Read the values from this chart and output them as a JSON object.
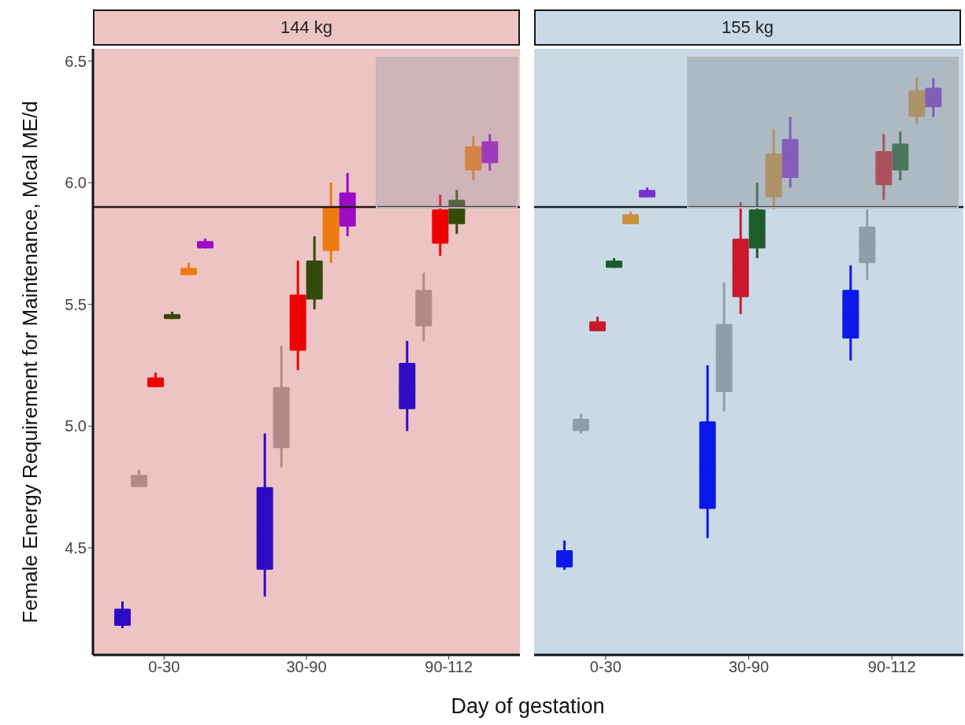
{
  "chart_data": [
    {
      "type": "box",
      "title": "144 kg",
      "xlabel": "Day of gestation",
      "ylabel": "Female Energy Requirement for Maintenance, Mcal ME/d",
      "categories": [
        "0-30",
        "30-90",
        "90-112"
      ],
      "ylim": [
        4.06,
        6.55
      ],
      "yticks": [
        {
          "value": 4.5,
          "label": "4.5"
        },
        {
          "value": 5,
          "label": "5.0"
        },
        {
          "value": 5.5,
          "label": "5.5"
        },
        {
          "value": 6,
          "label": "6.0"
        },
        {
          "value": 6.5,
          "label": "6.5"
        }
      ],
      "ref_lines": [
        {
          "axis": "y",
          "value": 5.9,
          "color": "#2a1515"
        }
      ],
      "series": [
        {
          "color": "#2f0ac6",
          "boxes": [
            {
              "low": 4.17,
              "q1": 4.18,
              "median": 4.22,
              "q3": 4.25,
              "high": 4.28
            },
            {
              "low": 4.3,
              "q1": 4.41,
              "median": 4.58,
              "q3": 4.75,
              "high": 4.97
            },
            {
              "low": 4.98,
              "q1": 5.07,
              "median": 5.16,
              "q3": 5.26,
              "high": 5.35
            }
          ]
        },
        {
          "color": "#b38a86",
          "boxes": [
            {
              "low": 4.75,
              "q1": 4.75,
              "median": 4.78,
              "q3": 4.8,
              "high": 4.82
            },
            {
              "low": 4.83,
              "q1": 4.91,
              "median": 5.04,
              "q3": 5.16,
              "high": 5.33
            },
            {
              "low": 5.35,
              "q1": 5.41,
              "median": 5.49,
              "q3": 5.56,
              "high": 5.63
            }
          ]
        },
        {
          "color": "#ee0000",
          "boxes": [
            {
              "low": 5.16,
              "q1": 5.16,
              "median": 5.18,
              "q3": 5.2,
              "high": 5.22
            },
            {
              "low": 5.23,
              "q1": 5.31,
              "median": 5.43,
              "q3": 5.54,
              "high": 5.68
            },
            {
              "low": 5.7,
              "q1": 5.75,
              "median": 5.82,
              "q3": 5.89,
              "high": 5.95
            }
          ]
        },
        {
          "color": "#344a0a",
          "boxes": [
            {
              "low": 5.44,
              "q1": 5.44,
              "median": 5.45,
              "q3": 5.46,
              "high": 5.47
            },
            {
              "low": 5.48,
              "q1": 5.52,
              "median": 5.6,
              "q3": 5.68,
              "high": 5.78
            },
            {
              "low": 5.79,
              "q1": 5.83,
              "median": 5.88,
              "q3": 5.93,
              "high": 5.97
            }
          ]
        },
        {
          "color": "#ef7b10",
          "boxes": [
            {
              "low": 5.62,
              "q1": 5.62,
              "median": 5.64,
              "q3": 5.65,
              "high": 5.67
            },
            {
              "low": 5.67,
              "q1": 5.72,
              "median": 5.81,
              "q3": 5.9,
              "high": 6.0
            },
            {
              "low": 6.01,
              "q1": 6.05,
              "median": 6.1,
              "q3": 6.15,
              "high": 6.19
            }
          ]
        },
        {
          "color": "#9b0cc4",
          "boxes": [
            {
              "low": 5.73,
              "q1": 5.73,
              "median": 5.74,
              "q3": 5.76,
              "high": 5.77
            },
            {
              "low": 5.78,
              "q1": 5.82,
              "median": 5.89,
              "q3": 5.96,
              "high": 6.04
            },
            {
              "low": 6.05,
              "q1": 6.08,
              "median": 6.13,
              "q3": 6.17,
              "high": 6.2
            }
          ]
        }
      ]
    },
    {
      "type": "box",
      "title": "155 kg",
      "categories": [
        "0-30",
        "30-90",
        "90-112"
      ],
      "ylim": [
        4.06,
        6.55
      ],
      "tick_labels": "x",
      "ref_lines": [
        {
          "axis": "y",
          "value": 5.9,
          "color": "#15202a"
        }
      ],
      "series": [
        {
          "color": "#0a18e8",
          "boxes": [
            {
              "low": 4.41,
              "q1": 4.42,
              "median": 4.45,
              "q3": 4.49,
              "high": 4.53
            },
            {
              "low": 4.54,
              "q1": 4.66,
              "median": 4.84,
              "q3": 5.02,
              "high": 5.25
            },
            {
              "low": 5.27,
              "q1": 5.36,
              "median": 5.46,
              "q3": 5.56,
              "high": 5.66
            }
          ]
        },
        {
          "color": "#8f9faa",
          "boxes": [
            {
              "low": 4.97,
              "q1": 4.98,
              "median": 5.0,
              "q3": 5.03,
              "high": 5.05
            },
            {
              "low": 5.06,
              "q1": 5.14,
              "median": 5.28,
              "q3": 5.42,
              "high": 5.59
            },
            {
              "low": 5.6,
              "q1": 5.67,
              "median": 5.75,
              "q3": 5.82,
              "high": 5.89
            }
          ]
        },
        {
          "color": "#c9192d",
          "boxes": [
            {
              "low": 5.39,
              "q1": 5.39,
              "median": 5.41,
              "q3": 5.43,
              "high": 5.45
            },
            {
              "low": 5.46,
              "q1": 5.53,
              "median": 5.65,
              "q3": 5.77,
              "high": 5.92
            },
            {
              "low": 5.93,
              "q1": 5.99,
              "median": 6.06,
              "q3": 6.13,
              "high": 6.2
            }
          ]
        },
        {
          "color": "#1d5d2d",
          "boxes": [
            {
              "low": 5.65,
              "q1": 5.65,
              "median": 5.66,
              "q3": 5.68,
              "high": 5.69
            },
            {
              "low": 5.69,
              "q1": 5.73,
              "median": 5.81,
              "q3": 5.89,
              "high": 6.0
            },
            {
              "low": 6.01,
              "q1": 6.05,
              "median": 6.11,
              "q3": 6.16,
              "high": 6.21
            }
          ]
        },
        {
          "color": "#ca903c",
          "boxes": [
            {
              "low": 5.83,
              "q1": 5.83,
              "median": 5.85,
              "q3": 5.87,
              "high": 5.88
            },
            {
              "low": 5.89,
              "q1": 5.94,
              "median": 6.03,
              "q3": 6.12,
              "high": 6.22
            },
            {
              "low": 6.24,
              "q1": 6.27,
              "median": 6.33,
              "q3": 6.38,
              "high": 6.43
            }
          ]
        },
        {
          "color": "#7b30d1",
          "boxes": [
            {
              "low": 5.94,
              "q1": 5.94,
              "median": 5.95,
              "q3": 5.97,
              "high": 5.98
            },
            {
              "low": 5.98,
              "q1": 6.02,
              "median": 6.1,
              "q3": 6.18,
              "high": 6.27
            },
            {
              "low": 6.27,
              "q1": 6.31,
              "median": 6.35,
              "q3": 6.39,
              "high": 6.43
            }
          ]
        }
      ]
    }
  ]
}
